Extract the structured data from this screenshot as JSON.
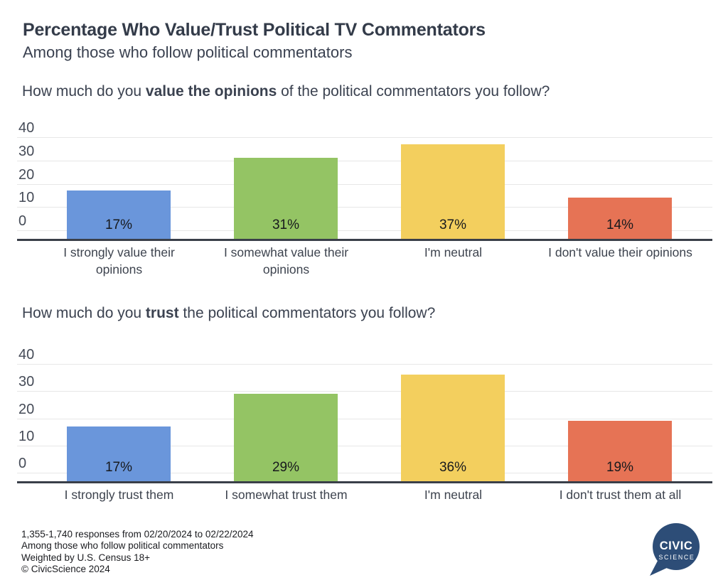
{
  "header": {
    "title": "Percentage Who Value/Trust Political TV Commentators",
    "subtitle": "Among those who follow political commentators"
  },
  "chart_data": [
    {
      "type": "bar",
      "question": {
        "pre": "How much do you ",
        "bold": "value the opinions",
        "post": " of the political commentators you follow?"
      },
      "categories": [
        "I strongly value their opinions",
        "I somewhat value their opinions",
        "I'm neutral",
        "I don't value their opinions"
      ],
      "values": [
        17,
        31,
        37,
        14
      ],
      "value_labels": [
        "17%",
        "31%",
        "37%",
        "14%"
      ],
      "bar_colors": [
        "#6a96db",
        "#94c464",
        "#f3cf5e",
        "#e67355"
      ],
      "ylim": [
        0,
        40
      ],
      "yticks": [
        0,
        10,
        20,
        30,
        40
      ],
      "grid": true,
      "legend": "none"
    },
    {
      "type": "bar",
      "question": {
        "pre": "How much do you ",
        "bold": "trust",
        "post": " the political commentators you follow?"
      },
      "categories": [
        "I strongly trust them",
        "I somewhat trust them",
        "I'm neutral",
        "I don't trust them at all"
      ],
      "values": [
        17,
        29,
        36,
        19
      ],
      "value_labels": [
        "17%",
        "29%",
        "36%",
        "19%"
      ],
      "bar_colors": [
        "#6a96db",
        "#94c464",
        "#f3cf5e",
        "#e67355"
      ],
      "ylim": [
        0,
        40
      ],
      "yticks": [
        0,
        10,
        20,
        30,
        40
      ],
      "grid": true,
      "legend": "none"
    }
  ],
  "footer": {
    "lines": [
      "1,355-1,740 responses from 02/20/2024 to 02/22/2024",
      "Among those who follow political commentators",
      "Weighted by U.S. Census 18+",
      "© CivicScience 2024"
    ]
  },
  "logo": {
    "line1": "CIVIC",
    "line2": "SCIENCE",
    "bubble_color": "#2d4d77",
    "text_color": "#ffffff"
  },
  "colors": {
    "axis": "#3a3f49",
    "grid": "#e7e7e7",
    "title_text": "#333b49",
    "value_label_text": "#17191d"
  }
}
